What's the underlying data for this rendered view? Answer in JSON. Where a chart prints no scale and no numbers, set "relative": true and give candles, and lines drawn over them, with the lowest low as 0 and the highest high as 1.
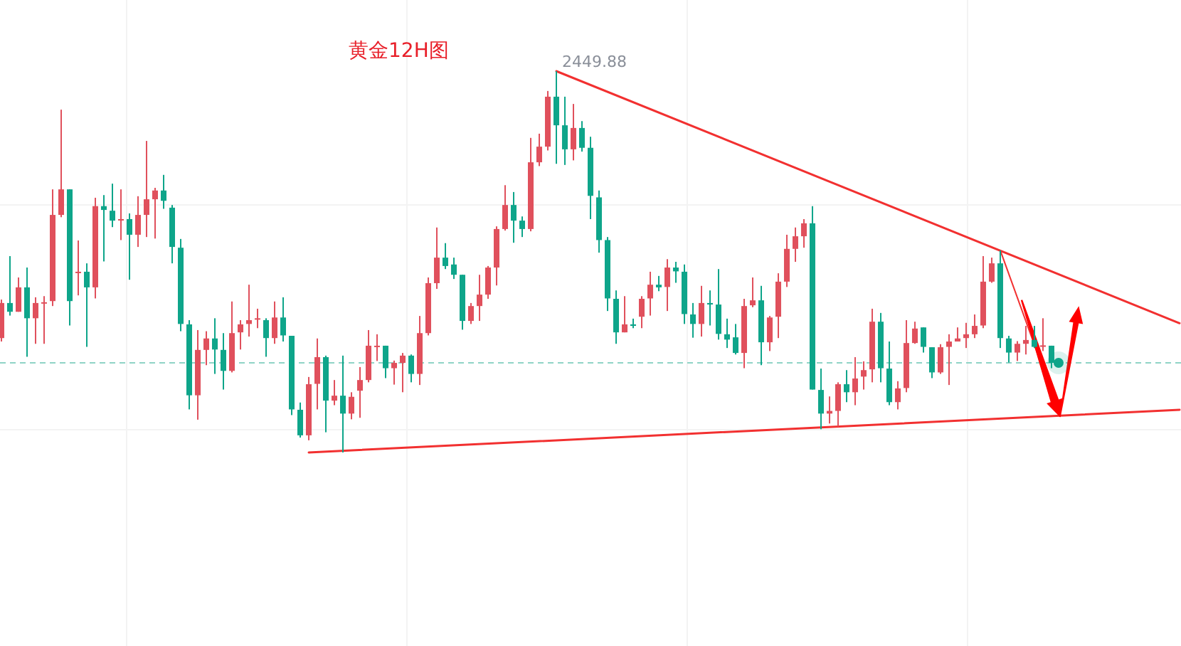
{
  "chart_data": {
    "type": "candlestick",
    "title": "黄金12H图",
    "relative": true,
    "grid": true,
    "categories": [
      null,
      null,
      null,
      null,
      null,
      null,
      null,
      null,
      null,
      null,
      null,
      null,
      null,
      null,
      null,
      null,
      null,
      null,
      null,
      null,
      null,
      null,
      null,
      null,
      null,
      null,
      null,
      null,
      null,
      null,
      null,
      null,
      null,
      null,
      null,
      null,
      null,
      null,
      null,
      null,
      null,
      null,
      null,
      null,
      null,
      null,
      null,
      null,
      null,
      null,
      null,
      null,
      null,
      null,
      null,
      null,
      null,
      null,
      null,
      null,
      null,
      null,
      null,
      null,
      null,
      null,
      null,
      null,
      null,
      null,
      null,
      null,
      null,
      null,
      null,
      null,
      null,
      null,
      null,
      null,
      null,
      null,
      null,
      null,
      null,
      null,
      null,
      null,
      null,
      null,
      null,
      null,
      null,
      null,
      null,
      null,
      null,
      null,
      null,
      null,
      null,
      null,
      null,
      null,
      null,
      null,
      null,
      null,
      null,
      null,
      null,
      null,
      null,
      null,
      null,
      null,
      null,
      null,
      null,
      null,
      null,
      null,
      null,
      null,
      null,
      null,
      null,
      null,
      null,
      null,
      null,
      null,
      null,
      null,
      null,
      null,
      null,
      null,
      null
    ],
    "ohlc": [
      [
        0.3,
        0.401,
        0.291,
        0.392
      ],
      [
        0.392,
        0.515,
        0.359,
        0.369
      ],
      [
        0.369,
        0.459,
        0.369,
        0.433
      ],
      [
        0.433,
        0.485,
        0.251,
        0.352
      ],
      [
        0.352,
        0.407,
        0.285,
        0.392
      ],
      [
        0.392,
        0.41,
        0.285,
        0.394
      ],
      [
        0.397,
        0.69,
        0.384,
        0.623
      ],
      [
        0.623,
        0.899,
        0.617,
        0.69
      ],
      [
        0.69,
        0.69,
        0.333,
        0.397
      ],
      [
        0.471,
        0.556,
        0.412,
        0.474
      ],
      [
        0.474,
        0.496,
        0.277,
        0.433
      ],
      [
        0.433,
        0.668,
        0.404,
        0.646
      ],
      [
        0.646,
        0.675,
        0.501,
        0.636
      ],
      [
        0.634,
        0.705,
        0.591,
        0.608
      ],
      [
        0.609,
        0.69,
        0.557,
        0.612
      ],
      [
        0.612,
        0.627,
        0.453,
        0.571
      ],
      [
        0.571,
        0.672,
        0.539,
        0.623
      ],
      [
        0.623,
        0.817,
        0.565,
        0.664
      ],
      [
        0.664,
        0.694,
        0.561,
        0.687
      ],
      [
        0.687,
        0.728,
        0.639,
        0.66
      ],
      [
        0.642,
        0.649,
        0.496,
        0.539
      ],
      [
        0.537,
        0.56,
        0.318,
        0.337
      ],
      [
        0.336,
        0.347,
        0.113,
        0.15
      ],
      [
        0.15,
        0.321,
        0.086,
        0.269
      ],
      [
        0.269,
        0.318,
        0.229,
        0.299
      ],
      [
        0.299,
        0.352,
        0.206,
        0.27
      ],
      [
        0.269,
        0.313,
        0.165,
        0.214
      ],
      [
        0.214,
        0.396,
        0.21,
        0.313
      ],
      [
        0.315,
        0.347,
        0.27,
        0.336
      ],
      [
        0.337,
        0.44,
        0.304,
        0.347
      ],
      [
        0.35,
        0.377,
        0.326,
        0.352
      ],
      [
        0.347,
        0.352,
        0.251,
        0.3
      ],
      [
        0.3,
        0.396,
        0.285,
        0.354
      ],
      [
        0.354,
        0.407,
        0.291,
        0.307
      ],
      [
        0.306,
        0.306,
        0.098,
        0.113
      ],
      [
        0.112,
        0.131,
        0.039,
        0.045
      ],
      [
        0.045,
        0.198,
        0.032,
        0.179
      ],
      [
        0.18,
        0.299,
        0.113,
        0.25
      ],
      [
        0.25,
        0.254,
        0.053,
        0.136
      ],
      [
        0.136,
        0.19,
        0.124,
        0.149
      ],
      [
        0.149,
        0.254,
        0,
        0.102
      ],
      [
        0.102,
        0.158,
        0.087,
        0.146
      ],
      [
        0.162,
        0.224,
        0.091,
        0.19
      ],
      [
        0.19,
        0.321,
        0.184,
        0.28
      ],
      [
        0.277,
        0.31,
        0.24,
        0.28
      ],
      [
        0.28,
        0.28,
        0.195,
        0.221
      ],
      [
        0.221,
        0.241,
        0.178,
        0.235
      ],
      [
        0.235,
        0.261,
        0.158,
        0.254
      ],
      [
        0.254,
        0.257,
        0.184,
        0.206
      ],
      [
        0.206,
        0.358,
        0.177,
        0.313
      ],
      [
        0.313,
        0.459,
        0.307,
        0.444
      ],
      [
        0.444,
        0.59,
        0.429,
        0.511
      ],
      [
        0.511,
        0.549,
        0.481,
        0.489
      ],
      [
        0.493,
        0.511,
        0.455,
        0.466
      ],
      [
        0.466,
        0.466,
        0.322,
        0.345
      ],
      [
        0.345,
        0.392,
        0.337,
        0.384
      ],
      [
        0.384,
        0.466,
        0.345,
        0.414
      ],
      [
        0.414,
        0.489,
        0.403,
        0.485
      ],
      [
        0.485,
        0.593,
        0.438,
        0.586
      ],
      [
        0.586,
        0.701,
        0.582,
        0.649
      ],
      [
        0.649,
        0.683,
        0.55,
        0.608
      ],
      [
        0.608,
        0.619,
        0.565,
        0.586
      ],
      [
        0.586,
        0.825,
        0.58,
        0.761
      ],
      [
        0.761,
        0.836,
        0.751,
        0.802
      ],
      [
        0.802,
        0.948,
        0.792,
        0.933
      ],
      [
        0.933,
        1,
        0.757,
        0.858
      ],
      [
        0.858,
        0.933,
        0.754,
        0.795
      ],
      [
        0.795,
        0.914,
        0.766,
        0.851
      ],
      [
        0.851,
        0.869,
        0.789,
        0.799
      ],
      [
        0.799,
        0.828,
        0.612,
        0.673
      ],
      [
        0.669,
        0.687,
        0.524,
        0.557
      ],
      [
        0.557,
        0.565,
        0.371,
        0.404
      ],
      [
        0.403,
        0.425,
        0.285,
        0.315
      ],
      [
        0.315,
        0.41,
        0.315,
        0.336
      ],
      [
        0.336,
        0.351,
        0.326,
        0.332
      ],
      [
        0.356,
        0.41,
        0.326,
        0.403
      ],
      [
        0.404,
        0.474,
        0.359,
        0.44
      ],
      [
        0.44,
        0.463,
        0.423,
        0.433
      ],
      [
        0.434,
        0.507,
        0.371,
        0.485
      ],
      [
        0.485,
        0.5,
        0.445,
        0.475
      ],
      [
        0.474,
        0.493,
        0.337,
        0.363
      ],
      [
        0.362,
        0.392,
        0.301,
        0.337
      ],
      [
        0.337,
        0.437,
        0.304,
        0.392
      ],
      [
        0.392,
        0.425,
        0.333,
        0.388
      ],
      [
        0.388,
        0.481,
        0.296,
        0.311
      ],
      [
        0.31,
        0.351,
        0.274,
        0.296
      ],
      [
        0.302,
        0.337,
        0.257,
        0.261
      ],
      [
        0.261,
        0.403,
        0.221,
        0.384
      ],
      [
        0.386,
        0.459,
        0.381,
        0.399
      ],
      [
        0.399,
        0.437,
        0.229,
        0.289
      ],
      [
        0.289,
        0.358,
        0.266,
        0.354
      ],
      [
        0.356,
        0.47,
        0.3,
        0.448
      ],
      [
        0.448,
        0.571,
        0.434,
        0.534
      ],
      [
        0.534,
        0.59,
        0.5,
        0.567
      ],
      [
        0.567,
        0.612,
        0.537,
        0.601
      ],
      [
        0.601,
        0.646,
        0.165,
        0.165
      ],
      [
        0.164,
        0.22,
        0.061,
        0.102
      ],
      [
        0.102,
        0.147,
        0.076,
        0.109
      ],
      [
        0.109,
        0.184,
        0.068,
        0.179
      ],
      [
        0.179,
        0.216,
        0.132,
        0.158
      ],
      [
        0.158,
        0.25,
        0.124,
        0.194
      ],
      [
        0.199,
        0.239,
        0.165,
        0.216
      ],
      [
        0.218,
        0.377,
        0.184,
        0.343
      ],
      [
        0.343,
        0.366,
        0.184,
        0.221
      ],
      [
        0.22,
        0.291,
        0.124,
        0.132
      ],
      [
        0.132,
        0.187,
        0.113,
        0.168
      ],
      [
        0.169,
        0.347,
        0.158,
        0.287
      ],
      [
        0.287,
        0.343,
        0.285,
        0.325
      ],
      [
        0.328,
        0.328,
        0.262,
        0.277
      ],
      [
        0.276,
        0.276,
        0.195,
        0.21
      ],
      [
        0.21,
        0.284,
        0.206,
        0.276
      ],
      [
        0.277,
        0.31,
        0.177,
        0.291
      ],
      [
        0.291,
        0.328,
        0.291,
        0.299
      ],
      [
        0.3,
        0.34,
        0.274,
        0.31
      ],
      [
        0.31,
        0.362,
        0.3,
        0.332
      ],
      [
        0.333,
        0.515,
        0.326,
        0.448
      ],
      [
        0.448,
        0.511,
        0.445,
        0.496
      ],
      [
        0.496,
        0.53,
        0.274,
        0.3
      ],
      [
        0.299,
        0.306,
        0.236,
        0.262
      ],
      [
        0.262,
        0.292,
        0.24,
        0.285
      ],
      [
        0.285,
        0.332,
        0.257,
        0.295
      ],
      [
        0.295,
        0.332,
        0.274,
        0.277
      ],
      [
        0.277,
        0.352,
        0.266,
        0.281
      ],
      [
        0.28,
        0.28,
        0.221,
        0.235
      ],
      null,
      null,
      null,
      null,
      null,
      null,
      null,
      null,
      null,
      null,
      null,
      null,
      null,
      null,
      null
    ],
    "colors": [
      "#e0505c",
      "#0ea58a",
      "#e0505c",
      "#0ea58a",
      "#e0505c",
      "#e0505c",
      "#e0505c",
      "#e0505c",
      "#0ea58a",
      "#e0505c",
      "#0ea58a",
      "#e0505c",
      "#0ea58a",
      "#0ea58a",
      "#e0505c",
      "#0ea58a",
      "#e0505c",
      "#e0505c",
      "#e0505c",
      "#0ea58a",
      "#0ea58a",
      "#0ea58a",
      "#0ea58a",
      "#e0505c",
      "#e0505c",
      "#0ea58a",
      "#0ea58a",
      "#e0505c",
      "#e0505c",
      "#e0505c",
      "#e0505c",
      "#0ea58a",
      "#e0505c",
      "#0ea58a",
      "#0ea58a",
      "#0ea58a",
      "#e0505c",
      "#e0505c",
      "#0ea58a",
      "#e0505c",
      "#0ea58a",
      "#e0505c",
      "#e0505c",
      "#e0505c",
      "#e0505c",
      "#0ea58a",
      "#e0505c",
      "#e0505c",
      "#0ea58a",
      "#e0505c",
      "#e0505c",
      "#e0505c",
      "#0ea58a",
      "#0ea58a",
      "#0ea58a",
      "#e0505c",
      "#e0505c",
      "#e0505c",
      "#e0505c",
      "#e0505c",
      "#0ea58a",
      "#0ea58a",
      "#e0505c",
      "#e0505c",
      "#e0505c",
      "#0ea58a",
      "#0ea58a",
      "#e0505c",
      "#0ea58a",
      "#0ea58a",
      "#0ea58a",
      "#0ea58a",
      "#0ea58a",
      "#e0505c",
      "#0ea58a",
      "#e0505c",
      "#e0505c",
      "#0ea58a",
      "#e0505c",
      "#0ea58a",
      "#0ea58a",
      "#0ea58a",
      "#e0505c",
      "#0ea58a",
      "#0ea58a",
      "#0ea58a",
      "#0ea58a",
      "#e0505c",
      "#e0505c",
      "#0ea58a",
      "#e0505c",
      "#e0505c",
      "#e0505c",
      "#e0505c",
      "#e0505c",
      "#0ea58a",
      "#0ea58a",
      "#e0505c",
      "#e0505c",
      "#0ea58a",
      "#e0505c",
      "#e0505c",
      "#e0505c",
      "#0ea58a",
      "#0ea58a",
      "#e0505c",
      "#e0505c",
      "#e0505c",
      "#0ea58a",
      "#0ea58a",
      "#e0505c",
      "#e0505c",
      "#e0505c",
      "#e0505c",
      "#e0505c",
      "#e0505c",
      "#e0505c",
      "#0ea58a",
      "#0ea58a",
      "#e0505c",
      "#e0505c",
      "#0ea58a",
      "#e0505c",
      "#0ea58a",
      null,
      null,
      null,
      null,
      null,
      null,
      null,
      null,
      null,
      null,
      null,
      null,
      null,
      null,
      null
    ],
    "series": [
      {
        "type": "line",
        "color": "#f23030",
        "values": [
          null,
          null,
          null,
          null,
          null,
          null,
          null,
          null,
          null,
          null,
          null,
          null,
          null,
          null,
          null,
          null,
          null,
          null,
          null,
          null,
          null,
          null,
          null,
          null,
          null,
          null,
          null,
          null,
          null,
          null,
          null,
          null,
          null,
          null,
          null,
          null,
          null,
          null,
          null,
          null,
          null,
          null,
          null,
          null,
          null,
          null,
          null,
          null,
          null,
          null,
          null,
          null,
          null,
          null,
          null,
          null,
          null,
          null,
          null,
          null,
          null,
          null,
          null,
          null,
          null,
          1,
          null,
          null,
          null,
          null,
          null,
          null,
          null,
          null,
          null,
          null,
          null,
          null,
          null,
          null,
          null,
          null,
          null,
          null,
          null,
          null,
          null,
          null,
          null,
          null,
          null,
          null,
          null,
          null,
          null,
          null,
          null,
          null,
          null,
          null,
          null,
          null,
          null,
          null,
          null,
          null,
          null,
          null,
          null,
          null,
          null,
          null,
          null,
          null,
          null,
          null,
          null,
          null,
          null,
          null,
          null,
          null,
          null,
          null,
          null,
          null,
          null,
          null,
          null,
          null,
          null,
          null,
          null,
          null,
          null,
          null,
          null,
          null,
          0.339
        ]
      },
      {
        "type": "line",
        "color": "#f23030",
        "values": [
          null,
          null,
          null,
          null,
          null,
          null,
          null,
          null,
          null,
          null,
          null,
          null,
          null,
          null,
          null,
          null,
          null,
          null,
          null,
          null,
          null,
          null,
          null,
          null,
          null,
          null,
          null,
          null,
          null,
          null,
          null,
          null,
          null,
          null,
          null,
          null,
          0,
          null,
          null,
          null,
          null,
          null,
          null,
          null,
          null,
          null,
          null,
          null,
          null,
          null,
          null,
          null,
          null,
          null,
          null,
          null,
          null,
          null,
          null,
          null,
          null,
          null,
          null,
          null,
          null,
          null,
          null,
          null,
          null,
          null,
          null,
          null,
          null,
          null,
          null,
          null,
          null,
          null,
          null,
          null,
          null,
          null,
          null,
          null,
          null,
          null,
          null,
          null,
          null,
          null,
          null,
          null,
          null,
          null,
          null,
          null,
          null,
          null,
          null,
          null,
          null,
          null,
          null,
          null,
          null,
          null,
          null,
          null,
          null,
          null,
          null,
          null,
          null,
          null,
          null,
          null,
          null,
          null,
          null,
          null,
          null,
          null,
          null,
          null,
          null,
          null,
          null,
          null,
          null,
          null,
          null,
          null,
          null,
          null,
          null,
          null,
          null,
          null,
          0.112
        ]
      }
    ],
    "ref_lines": [
      {
        "axis": "y",
        "value": 0.235,
        "color": "#8fd3c6",
        "line_style": "dashed"
      }
    ],
    "annotations": [
      "2449.88"
    ]
  }
}
